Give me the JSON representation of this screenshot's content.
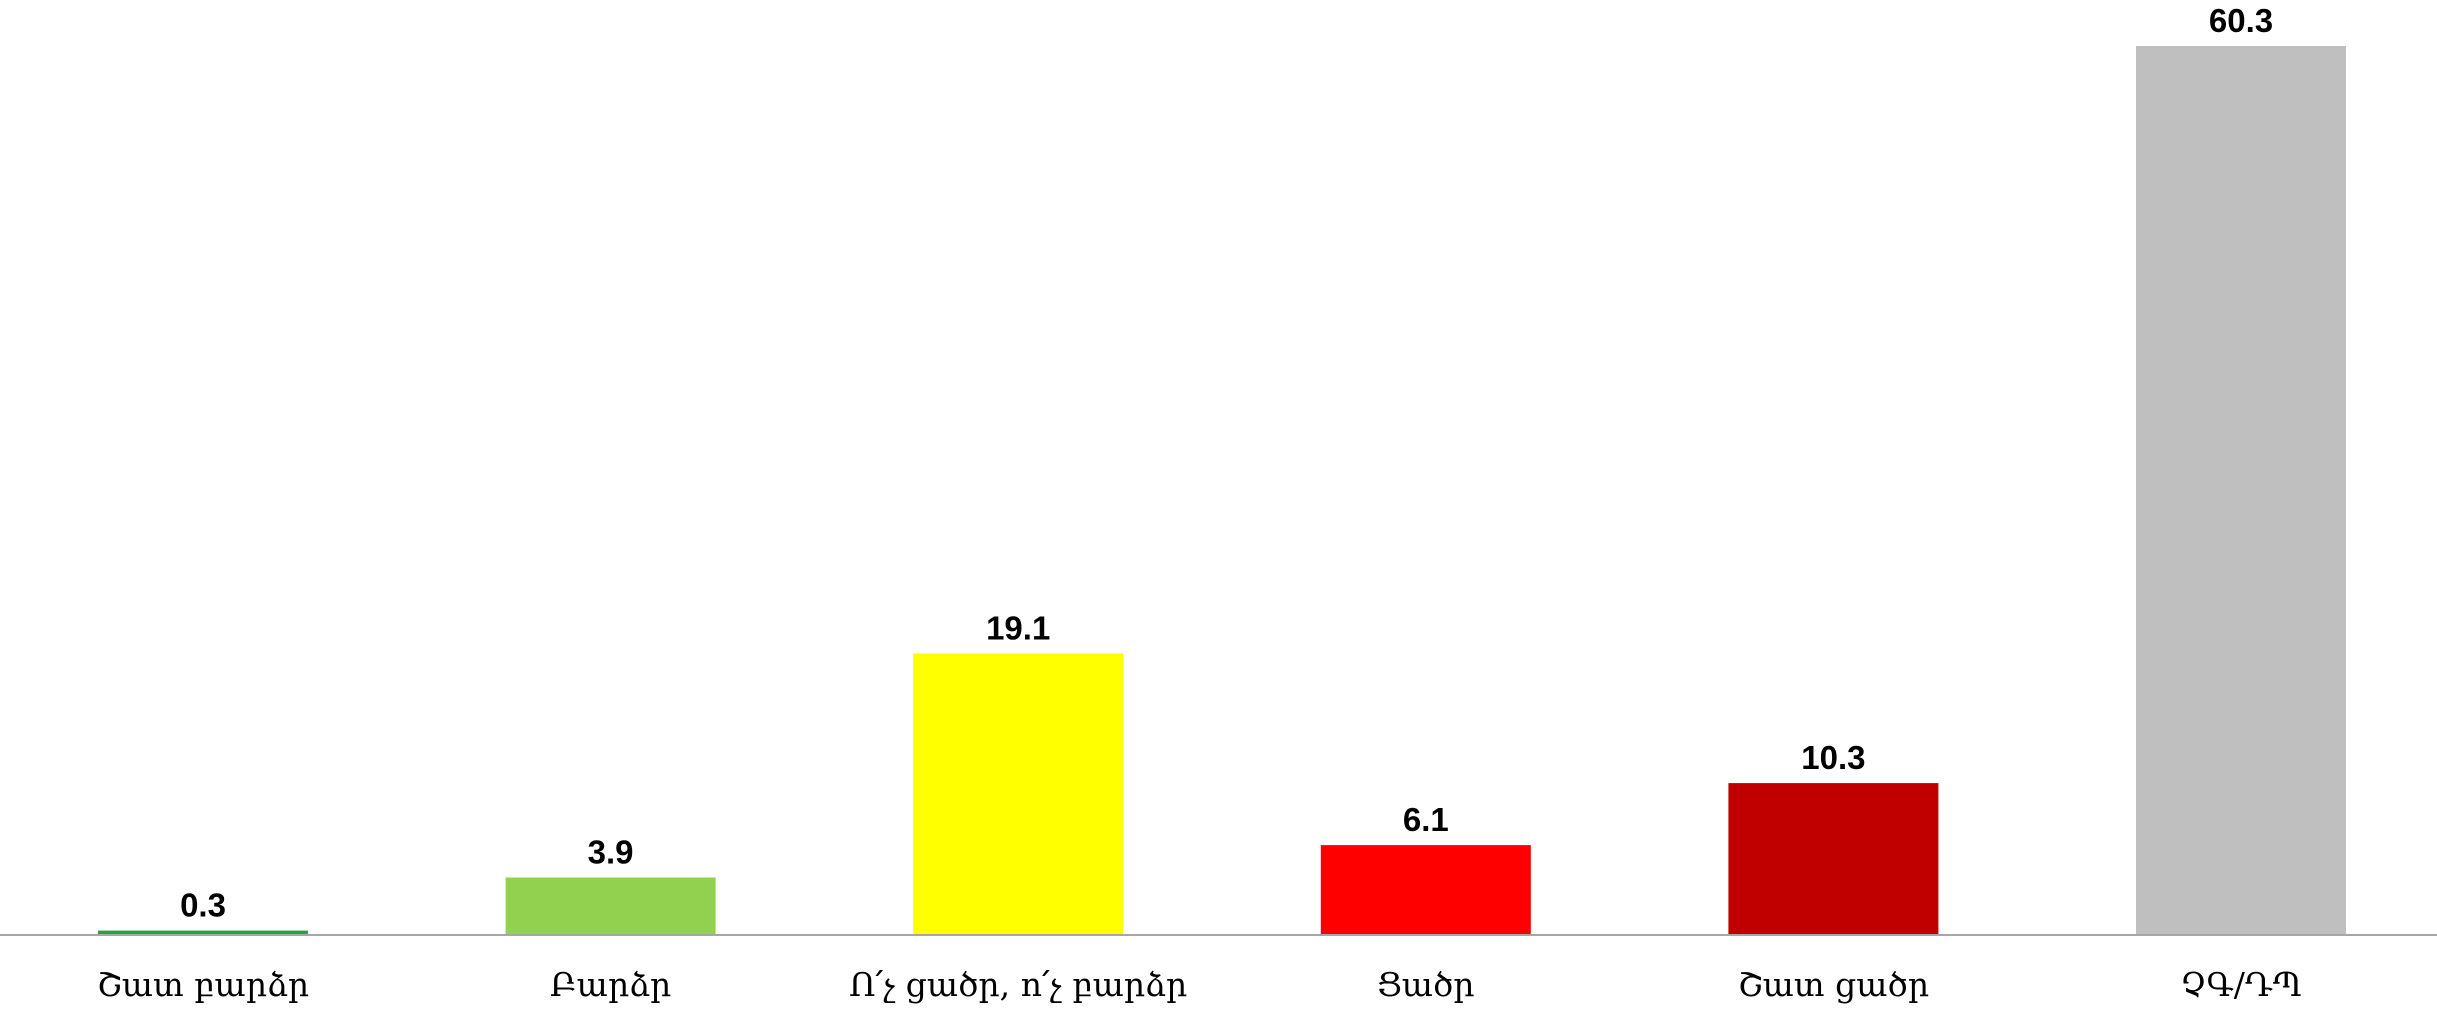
{
  "chart_data": {
    "type": "bar",
    "title": "",
    "xlabel": "",
    "ylabel": "",
    "ylim": [
      0,
      60.3
    ],
    "grid": false,
    "legend": "none",
    "categories": [
      "Շատ բարձր",
      "Բարձր",
      "Ո՛չ ցածր, ո՛չ բարձր",
      "Ցածր",
      "Շատ ցածր",
      "ՉԳ/ԴՊ"
    ],
    "values": [
      0.3,
      3.9,
      19.1,
      6.1,
      10.3,
      60.3
    ],
    "data_labels": [
      "0.3",
      "3.9",
      "19.1",
      "6.1",
      "10.3",
      "60.3"
    ],
    "colors": [
      "#1FA64A",
      "#92D050",
      "#FFFF00",
      "#FF0000",
      "#C00000",
      "#BFBFBF"
    ],
    "axis_color": "#A6A6A6"
  }
}
